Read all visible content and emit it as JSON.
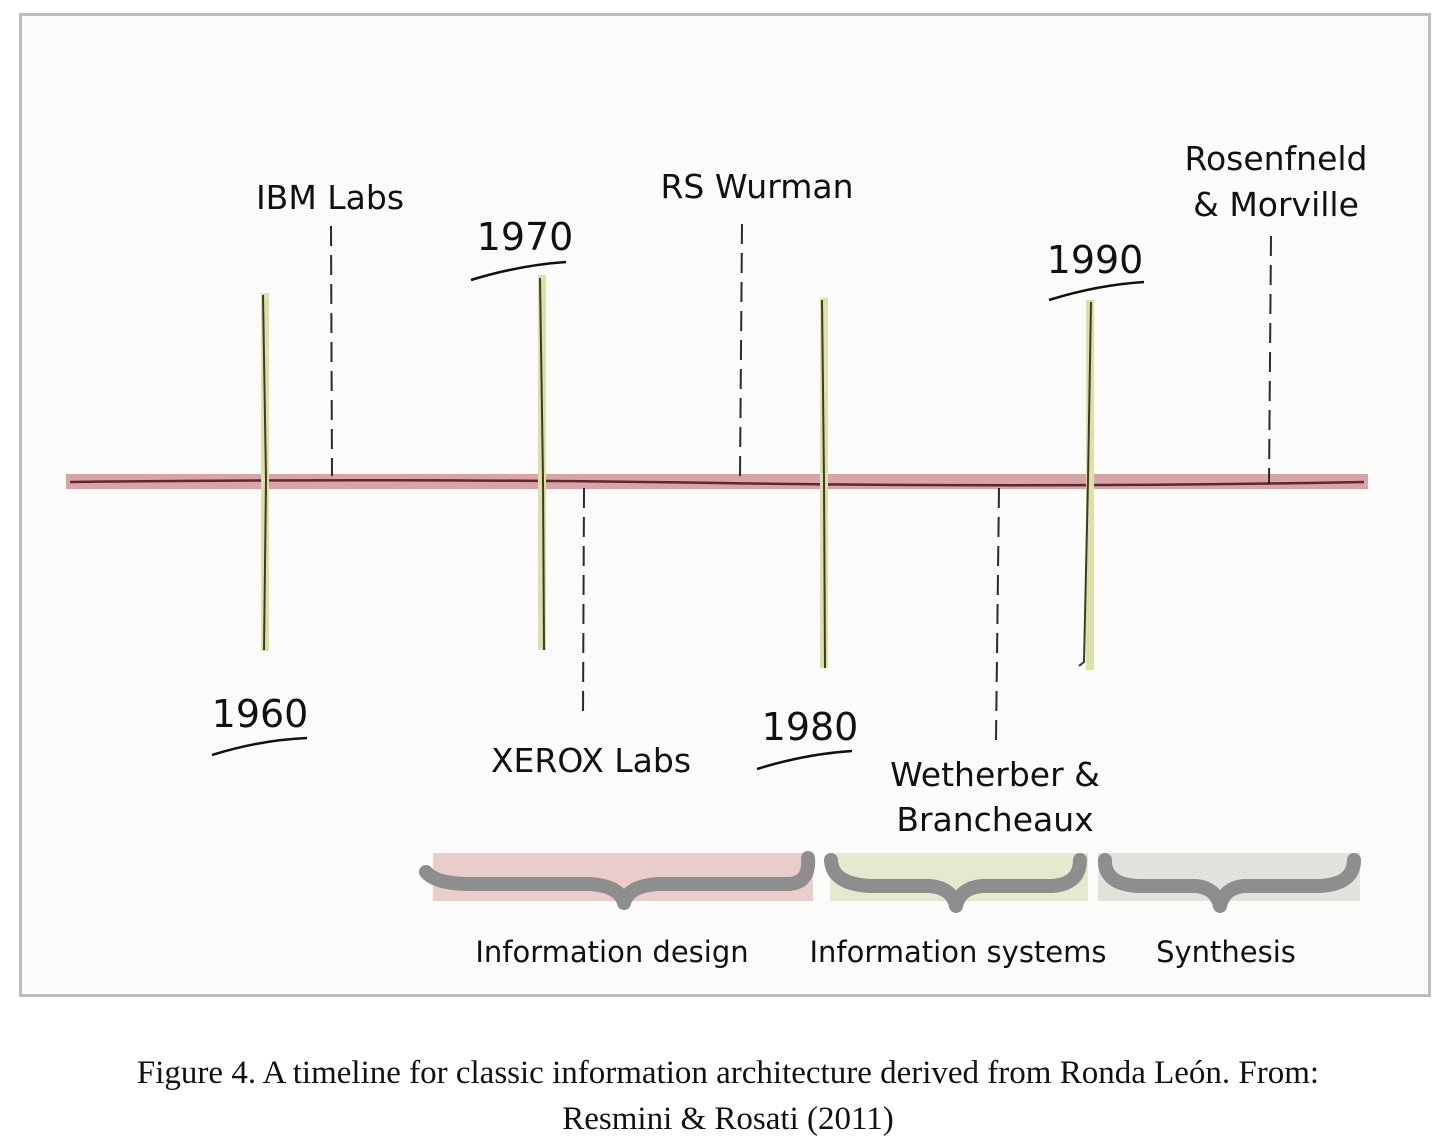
{
  "timeline": {
    "decades": [
      "1960",
      "1970",
      "1980",
      "1990"
    ],
    "events": [
      {
        "label": "IBM Labs"
      },
      {
        "label": "XEROX Labs"
      },
      {
        "label": "RS Wurman"
      },
      {
        "label": "Wetherber &",
        "label2": "Brancheaux"
      },
      {
        "label": "Rosenfneld",
        "label2": "& Morville"
      }
    ],
    "phases": [
      {
        "label": "Information design",
        "color": "#e9cccc"
      },
      {
        "label": "Information systems",
        "color": "#e7e8d0"
      },
      {
        "label": "Synthesis",
        "color": "#e1e3dc"
      }
    ],
    "colors": {
      "axis": "#d9a3a8",
      "axis_stroke": "#5a2a30",
      "decade_line": "#dde0a8",
      "decade_stroke": "#3c3c22",
      "brace": "#8e8e8e"
    }
  },
  "caption": {
    "line1": "Figure 4. A timeline for classic information architecture derived from Ronda León. From:",
    "line2": "Resmini & Rosati (2011)"
  }
}
